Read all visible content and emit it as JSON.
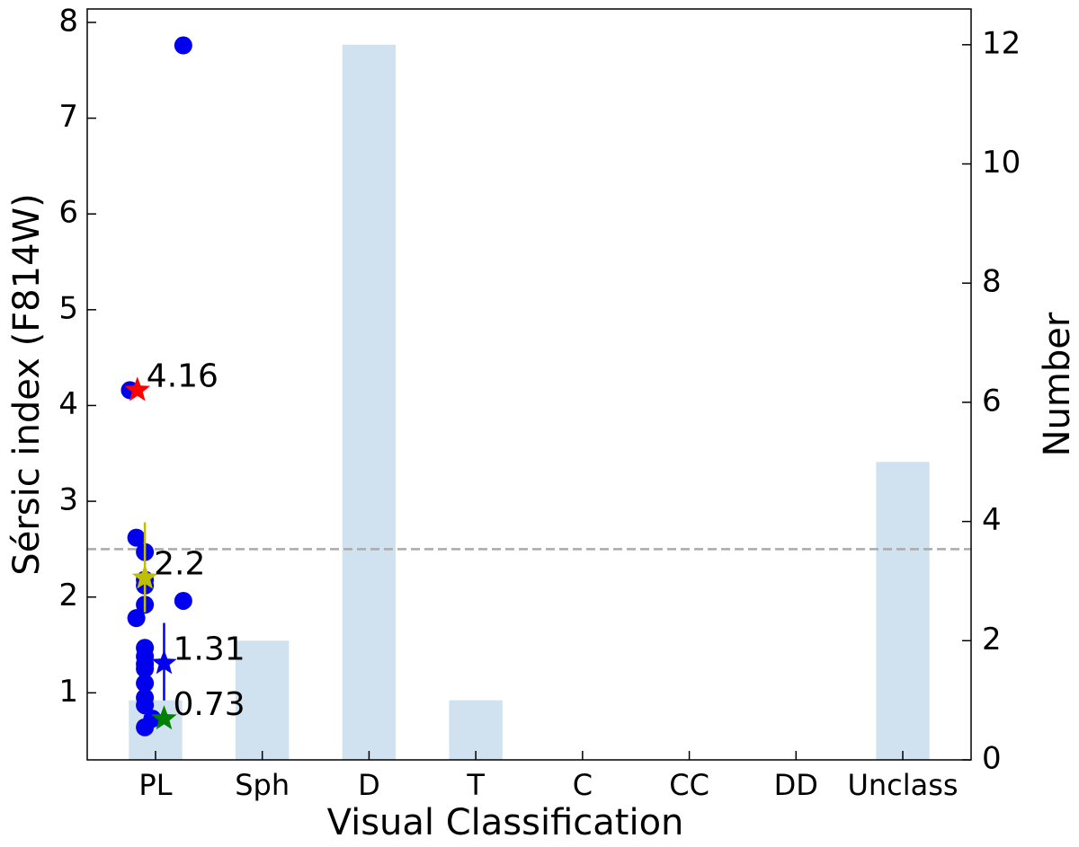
{
  "chart_data": {
    "type": "combo",
    "xlabel": "Visual Classification",
    "ylabel": "Sérsic index (F814W)",
    "y2label": "Number",
    "categories": [
      "PL",
      "Sph",
      "D",
      "T",
      "C",
      "CC",
      "DD",
      "Unclass"
    ],
    "xlim": [
      -0.64,
      7.64
    ],
    "ylim": [
      0.3,
      8.14
    ],
    "yticks": [
      1,
      2,
      3,
      4,
      5,
      6,
      7,
      8
    ],
    "y2lim": [
      0,
      12.6
    ],
    "y2ticks": [
      0,
      2,
      4,
      6,
      8,
      10,
      12
    ],
    "hline": {
      "value": 2.5,
      "color": "#aaaaaa"
    },
    "layers": [
      {
        "type": "bar",
        "axis": "y2",
        "color": "#d0e1ef",
        "values": [
          1,
          2,
          12,
          1,
          0,
          0,
          0,
          5
        ]
      },
      {
        "type": "scatter",
        "color": "#0000ee",
        "x": [
          -0.24,
          -0.18,
          -0.18,
          -0.1,
          -0.1,
          -0.1,
          -0.1,
          -0.1,
          -0.1,
          -0.1,
          -0.1,
          -0.1,
          -0.1,
          -0.1,
          -0.1,
          -0.03,
          0.26,
          0.26
        ],
        "values": [
          4.16,
          2.62,
          1.78,
          2.47,
          2.18,
          2.12,
          1.92,
          1.47,
          1.38,
          1.3,
          1.25,
          1.1,
          0.95,
          0.87,
          0.64,
          0.73,
          7.76,
          1.96
        ]
      },
      {
        "type": "star",
        "x": [
          -0.17,
          -0.1,
          0.08,
          0.08
        ],
        "values": [
          4.16,
          2.2,
          1.31,
          0.73
        ],
        "value_labels": [
          "4.16",
          "2.2",
          "1.31",
          "0.73"
        ],
        "err_low": [
          0,
          0.36,
          0.39,
          0
        ],
        "err_high": [
          0,
          0.58,
          0.42,
          0
        ],
        "colors": [
          "#ff0000",
          "#bfbf00",
          "#0000ee",
          "#008000"
        ]
      }
    ]
  }
}
